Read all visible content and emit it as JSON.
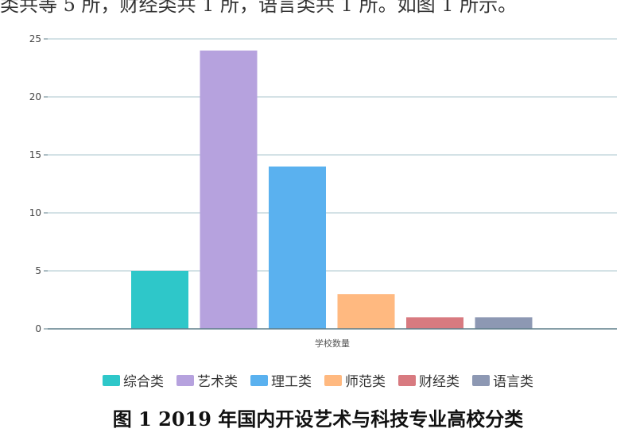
{
  "page": {
    "top_text": "类共等 5 所，财经类共 1 所，语言类共 1 所。如图 1 所示。",
    "bottom_text": ""
  },
  "chart_data": {
    "type": "bar",
    "categories": [
      "综合类",
      "艺术类",
      "理工类",
      "师范类",
      "财经类",
      "语言类"
    ],
    "values": [
      5,
      24,
      14,
      3,
      1,
      1
    ],
    "colors": [
      "#2EC7C9",
      "#B6A2DE",
      "#5AB1EF",
      "#FFB980",
      "#D87A80",
      "#8D98B3"
    ],
    "xlabel": "学校数量",
    "ylabel": "",
    "ylim": [
      0,
      25
    ],
    "yticks": [
      0,
      5,
      10,
      15,
      20,
      25
    ],
    "grid": true,
    "legend": "bottom",
    "caption": "图 1   2019 年国内开设艺术与科技专业高校分类"
  }
}
